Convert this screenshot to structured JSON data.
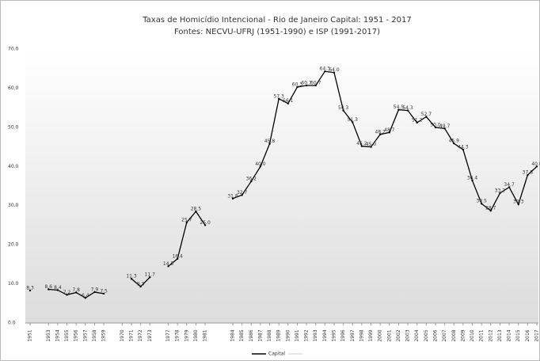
{
  "chart_data": {
    "type": "line",
    "title": "Taxas de Homicídio Intencional - Rio de Janeiro Capital: 1951 - 2017",
    "subtitle": "Fontes: NECVU-UFRJ (1951-1990) e ISP (1991-2017)",
    "categories": [
      "1951",
      null,
      "1953",
      "1954",
      "1955",
      "1956",
      "1957",
      "1958",
      "1959",
      null,
      "1970",
      "1971",
      "1972",
      "1973",
      null,
      "1977",
      "1978",
      "1979",
      "1980",
      "1981",
      null,
      null,
      "1984",
      "1985",
      "1986",
      "1987",
      "1988",
      "1989",
      "1990",
      "1991",
      "1992",
      "1993",
      "1994",
      "1995",
      "1996",
      "1997",
      "1998",
      "1999",
      "2000",
      "2001",
      "2002",
      "2003",
      "2004",
      "2005",
      "2006",
      "2007",
      "2008",
      "2009",
      "2010",
      "2011",
      "2012",
      "2013",
      "2014",
      "2015",
      "2016",
      "2017"
    ],
    "series": [
      {
        "name": "Capital",
        "color": "#000000",
        "values": [
          8.3,
          null,
          8.6,
          8.4,
          7.2,
          7.8,
          6.4,
          7.9,
          7.5,
          null,
          null,
          11.3,
          9.3,
          11.7,
          null,
          14.5,
          16.4,
          25.7,
          28.5,
          25.0,
          null,
          null,
          31.8,
          32.7,
          36.2,
          40.0,
          45.8,
          57.3,
          56.1,
          60.3,
          60.7,
          60.7,
          64.3,
          64.0,
          54.3,
          51.3,
          45.2,
          45.0,
          48.2,
          48.7,
          54.5,
          54.3,
          51.2,
          52.7,
          50.0,
          49.7,
          45.9,
          44.3,
          36.4,
          30.5,
          28.7,
          33.2,
          34.7,
          30.3,
          37.8,
          40.0
        ],
        "value_labels": [
          "8.3",
          null,
          "8.6",
          "8.4",
          "7.2",
          "7.8",
          "6.4",
          "7.9",
          "7.5",
          null,
          null,
          "11.3",
          "9.3",
          "11.7",
          null,
          "14.5",
          "16.4",
          "25.7",
          "28.5",
          "25.0",
          null,
          null,
          "31.8",
          "32.7",
          "36.2",
          "40.0",
          "45.8",
          "57.3",
          "56.1",
          "60.3",
          "60.7",
          "60.7",
          "64.3",
          "64.0",
          "54.3",
          "51.3",
          "45.2",
          "45.0",
          "48.2",
          "48.7",
          "54.5",
          "54.3",
          "51.2",
          "52.7",
          "50.0",
          "49.7",
          "45.9",
          "44.3",
          "36.4",
          "30.5",
          "28.7",
          "33.2",
          "34.7",
          "30.3",
          "37.8",
          "40.0"
        ]
      }
    ],
    "ylim": [
      0,
      70
    ],
    "yticks": [
      {
        "value": 0,
        "label": "0.0"
      },
      {
        "value": 10,
        "label": "10.0"
      },
      {
        "value": 20,
        "label": "20.0"
      },
      {
        "value": 30,
        "label": "30.0"
      },
      {
        "value": 40,
        "label": "40.0"
      },
      {
        "value": 50,
        "label": "50.0"
      },
      {
        "value": 60,
        "label": "60.0"
      },
      {
        "value": 70,
        "label": "70.0"
      }
    ],
    "grid": false,
    "legend": "bottom"
  }
}
